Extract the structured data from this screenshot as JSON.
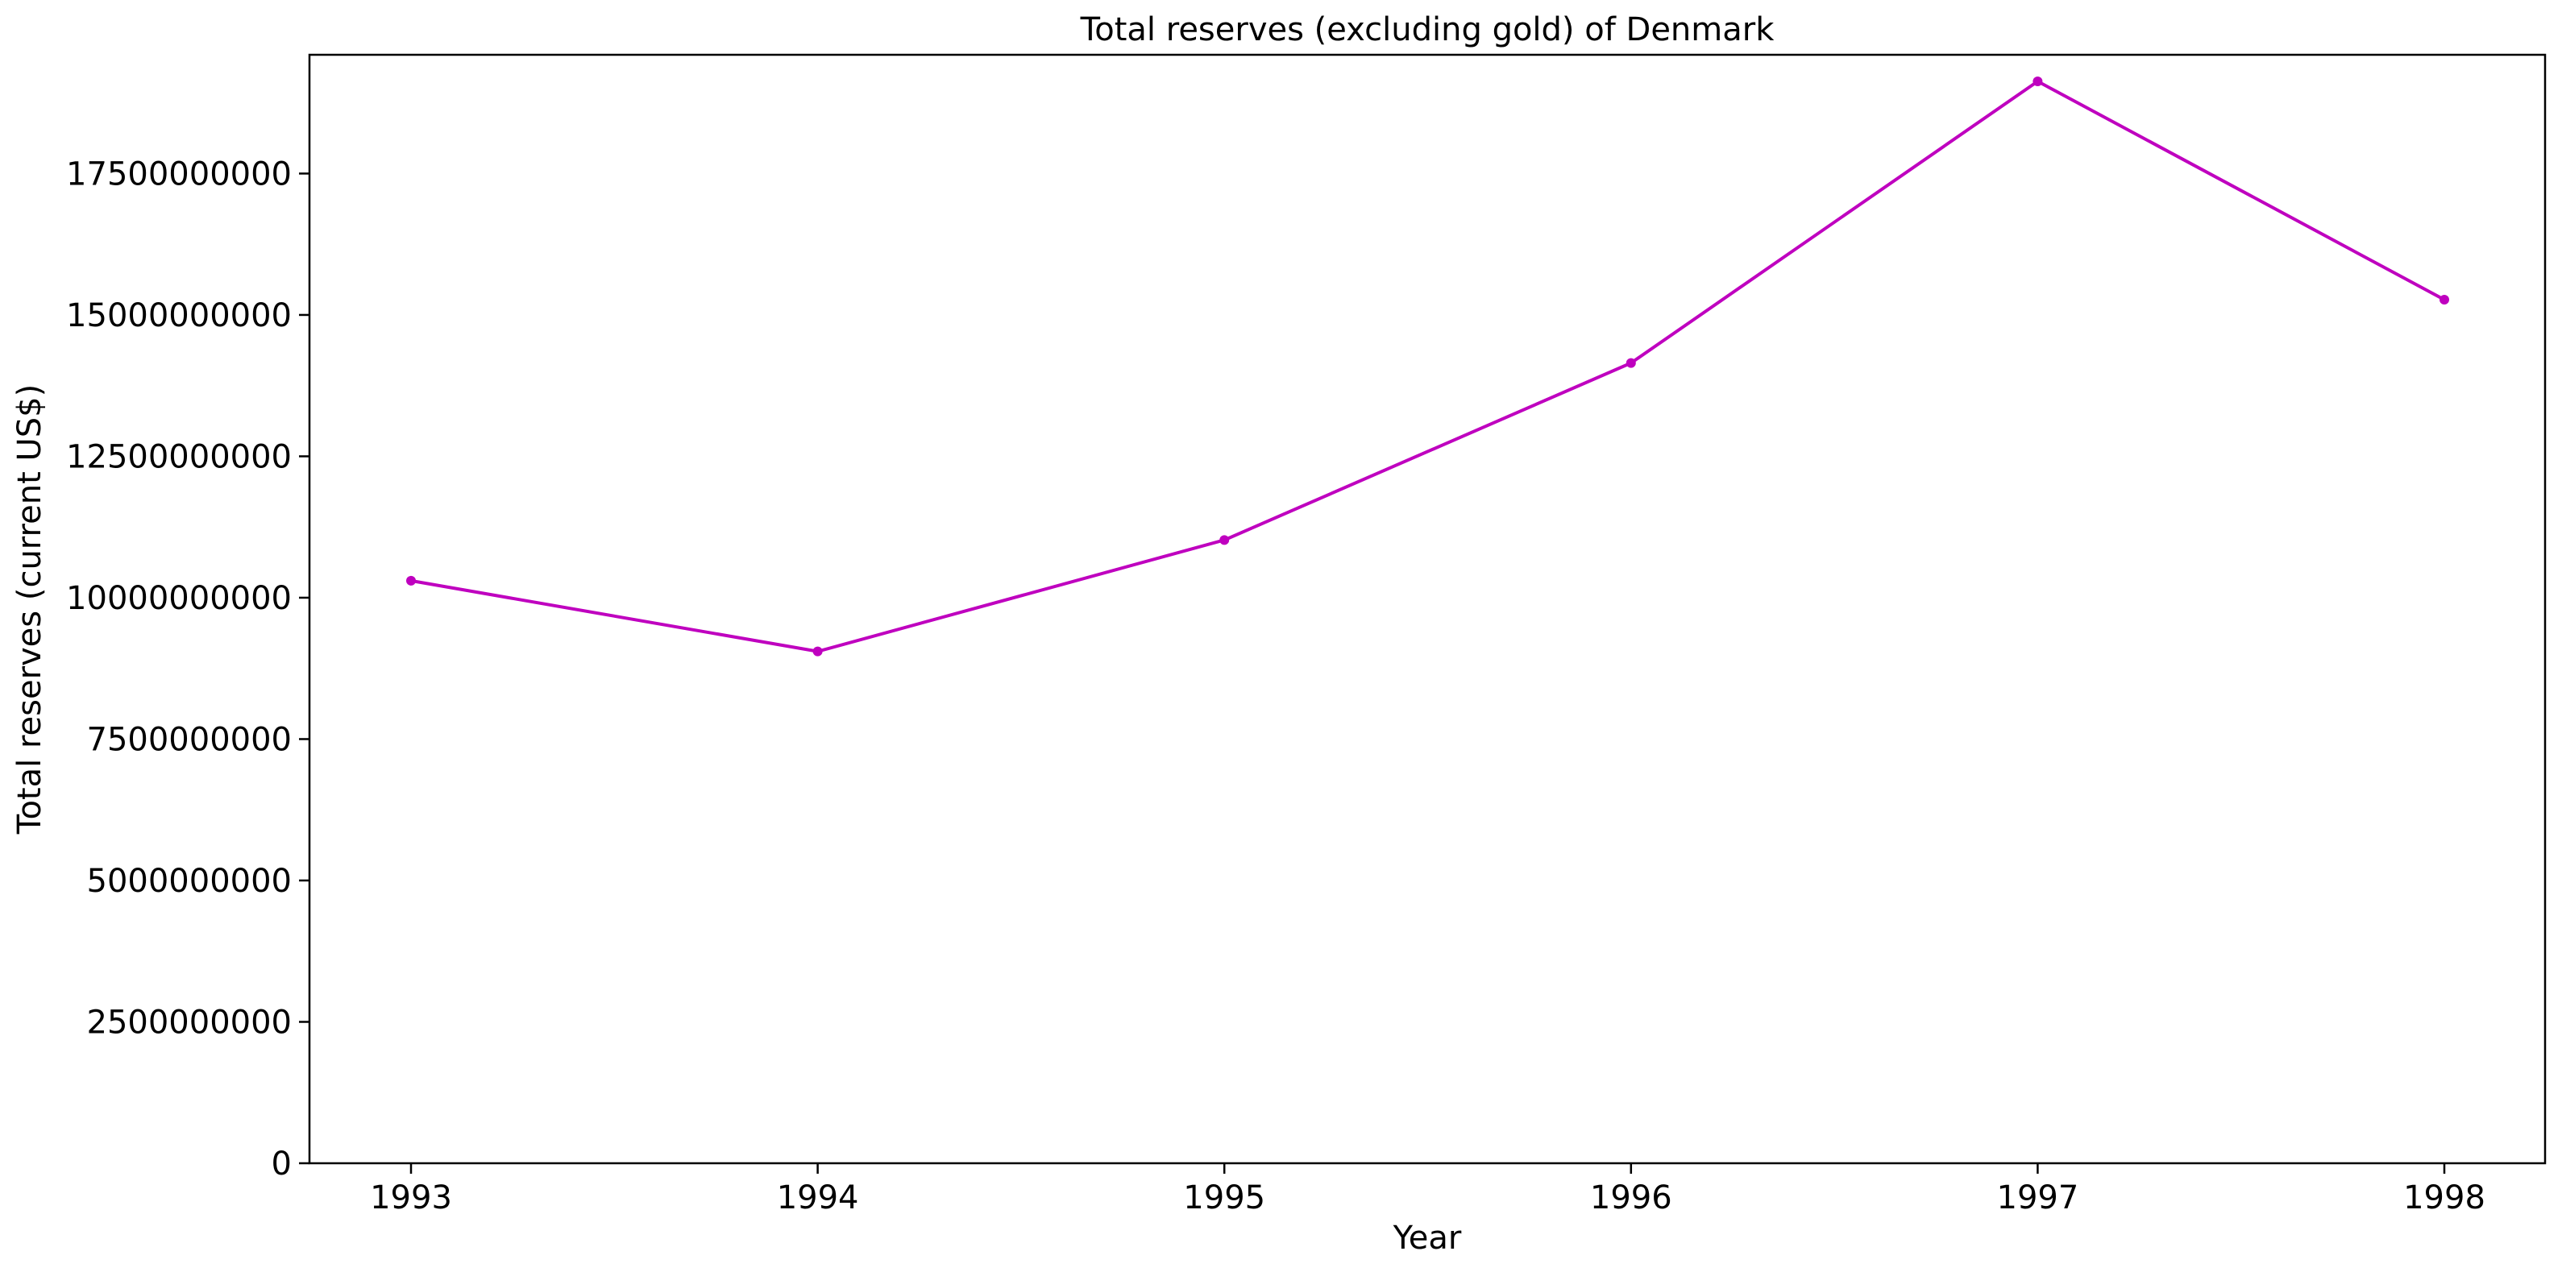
{
  "chart_data": {
    "type": "line",
    "title": "Total reserves (excluding gold) of Denmark",
    "xlabel": "Year",
    "ylabel": "Total reserves (current US$)",
    "x": [
      "1993",
      "1994",
      "1995",
      "1996",
      "1997",
      "1998"
    ],
    "series": [
      {
        "name": "Total reserves (excluding gold)",
        "values": [
          10300000000,
          9050000000,
          11020000000,
          14150000000,
          19130000000,
          15270000000
        ],
        "color": "#bf00bf"
      }
    ],
    "ylim": [
      0,
      19600000000
    ],
    "yticks": [
      0,
      2500000000,
      5000000000,
      7500000000,
      10000000000,
      12500000000,
      15000000000,
      17500000000
    ],
    "ytick_labels": [
      "0",
      "2500000000",
      "5000000000",
      "7500000000",
      "10000000000",
      "12500000000",
      "15000000000",
      "17500000000"
    ],
    "grid": false,
    "legend": "none"
  }
}
